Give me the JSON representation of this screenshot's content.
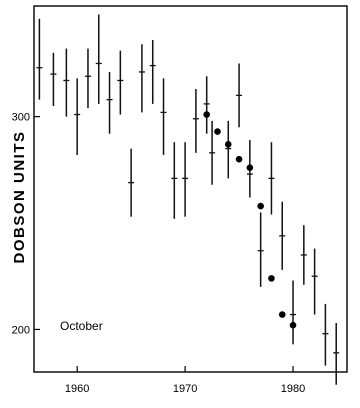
{
  "chart_data": {
    "type": "scatter",
    "title": "",
    "xlabel": "",
    "ylabel": "DOBSON UNITS",
    "annotation": "October",
    "xlim": [
      1956,
      1985
    ],
    "ylim": [
      180,
      352
    ],
    "xticks": [
      1960,
      1970,
      1980
    ],
    "xtick_labels": [
      "1960",
      "1970",
      "1980"
    ],
    "yticks": [
      200,
      300
    ],
    "ytick_labels": [
      "200",
      "300"
    ],
    "grid": false,
    "series": [
      {
        "marker": "cross-errorbar",
        "points": [
          {
            "x": 1956.5,
            "y": 323,
            "err": [
              308,
              346
            ]
          },
          {
            "x": 1957.8,
            "y": 320,
            "err": [
              305,
              330
            ]
          },
          {
            "x": 1959.0,
            "y": 317,
            "err": [
              300,
              332
            ]
          },
          {
            "x": 1960.0,
            "y": 301,
            "err": [
              282,
              318
            ]
          },
          {
            "x": 1961.0,
            "y": 319,
            "err": [
              304,
              332
            ]
          },
          {
            "x": 1962.0,
            "y": 325,
            "err": [
              306,
              348
            ]
          },
          {
            "x": 1963.0,
            "y": 308,
            "err": [
              292,
              321
            ]
          },
          {
            "x": 1964.0,
            "y": 317,
            "err": [
              301,
              331
            ]
          },
          {
            "x": 1965.0,
            "y": 269,
            "err": [
              253,
              285
            ]
          },
          {
            "x": 1966.0,
            "y": 321,
            "err": [
              302,
              334
            ]
          },
          {
            "x": 1967.0,
            "y": 324,
            "err": [
              306,
              336
            ]
          },
          {
            "x": 1968.0,
            "y": 302,
            "err": [
              282,
              318
            ]
          },
          {
            "x": 1969.0,
            "y": 271,
            "err": [
              252,
              288
            ]
          },
          {
            "x": 1970.0,
            "y": 271,
            "err": [
              253,
              288
            ]
          },
          {
            "x": 1971.0,
            "y": 299,
            "err": [
              283,
              313
            ]
          },
          {
            "x": 1972.0,
            "y": 306,
            "err": [
              292,
              319
            ]
          },
          {
            "x": 1972.5,
            "y": 283,
            "err": [
              268,
              298
            ]
          },
          {
            "x": 1974.0,
            "y": 285,
            "err": [
              271,
              298
            ]
          },
          {
            "x": 1975.0,
            "y": 310,
            "err": [
              295,
              325
            ]
          },
          {
            "x": 1976.0,
            "y": 273,
            "err": [
              262,
              289
            ]
          },
          {
            "x": 1977.0,
            "y": 237,
            "err": [
              220,
              255
            ]
          },
          {
            "x": 1978.0,
            "y": 271,
            "err": [
              254,
              288
            ]
          },
          {
            "x": 1979.0,
            "y": 244,
            "err": [
              228,
              260
            ]
          },
          {
            "x": 1980.0,
            "y": 207,
            "err": [
              193,
              223
            ]
          },
          {
            "x": 1981.0,
            "y": 235,
            "err": [
              221,
              249
            ]
          },
          {
            "x": 1982.0,
            "y": 225,
            "err": [
              207,
              238
            ]
          },
          {
            "x": 1983.0,
            "y": 198,
            "err": [
              183,
              212
            ]
          },
          {
            "x": 1984.0,
            "y": 189,
            "err": [
              174,
              203
            ]
          }
        ]
      },
      {
        "marker": "filled-circle",
        "points": [
          {
            "x": 1972.0,
            "y": 301
          },
          {
            "x": 1973.0,
            "y": 293
          },
          {
            "x": 1974.0,
            "y": 287
          },
          {
            "x": 1975.0,
            "y": 280
          },
          {
            "x": 1976.0,
            "y": 276
          },
          {
            "x": 1977.0,
            "y": 258
          },
          {
            "x": 1978.0,
            "y": 224
          },
          {
            "x": 1979.0,
            "y": 207
          },
          {
            "x": 1980.0,
            "y": 202
          }
        ]
      }
    ]
  }
}
